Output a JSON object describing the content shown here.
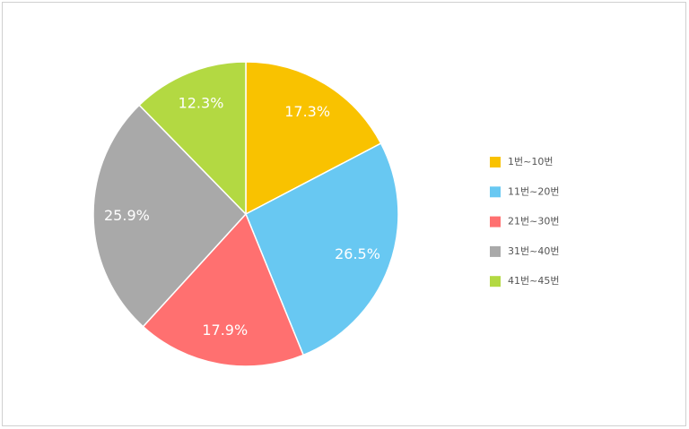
{
  "chart_data": {
    "type": "pie",
    "categories": [
      "1번~10번",
      "11번~20번",
      "21번~30번",
      "31번~40번",
      "41번~45번"
    ],
    "values": [
      17.3,
      26.5,
      17.9,
      25.9,
      12.3
    ],
    "value_labels": [
      "17.3%",
      "26.5%",
      "17.9%",
      "25.9%",
      "12.3%"
    ],
    "colors": [
      "#f9c200",
      "#68c8f2",
      "#ff7070",
      "#a9a9a9",
      "#b3d942"
    ],
    "legend": "right"
  }
}
